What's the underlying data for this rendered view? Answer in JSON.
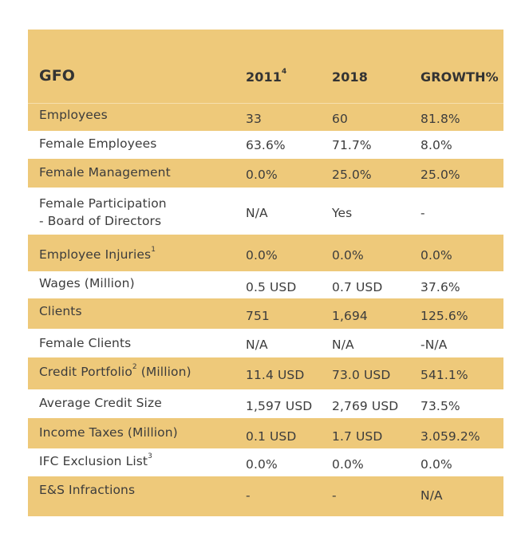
{
  "table": {
    "colors": {
      "shade": "#eec97a",
      "text": "#3c3c3c"
    },
    "header": {
      "title": "GFO",
      "col1": "2011",
      "col1_sup": "4",
      "col2": "2018",
      "col3": "GROWTH%"
    },
    "rows": [
      {
        "label": "Employees",
        "sup": "",
        "suffix": "",
        "v2011": "33",
        "v2018": "60",
        "growth": "81.8%"
      },
      {
        "label": "Female Employees",
        "sup": "",
        "suffix": "",
        "v2011": "63.6%",
        "v2018": "71.7%",
        "growth": "8.0%"
      },
      {
        "label": "Female Management",
        "sup": "",
        "suffix": "",
        "v2011": "0.0%",
        "v2018": "25.0%",
        "growth": "25.0%"
      },
      {
        "label": "Female Participation",
        "label2": "- Board of Directors",
        "sup": "",
        "suffix": "",
        "v2011": "N/A",
        "v2018": "Yes",
        "growth": "-"
      },
      {
        "label": "Employee Injuries",
        "sup": "1",
        "suffix": "",
        "v2011": "0.0%",
        "v2018": "0.0%",
        "growth": "0.0%"
      },
      {
        "label": "Wages (Million)",
        "sup": "",
        "suffix": "",
        "v2011": "0.5 USD",
        "v2018": "0.7 USD",
        "growth": "37.6%"
      },
      {
        "label": "Clients",
        "sup": "",
        "suffix": "",
        "v2011": "751",
        "v2018": "1,694",
        "growth": "125.6%"
      },
      {
        "label": "Female Clients",
        "sup": "",
        "suffix": "",
        "v2011": "N/A",
        "v2018": "N/A",
        "growth": "-N/A"
      },
      {
        "label": "Credit Portfolio",
        "sup": "2",
        "suffix": " (Million)",
        "v2011": "11.4 USD",
        "v2018": "73.0 USD",
        "growth": "541.1%"
      },
      {
        "label": "Average Credit Size",
        "sup": "",
        "suffix": "",
        "v2011": "1,597 USD",
        "v2018": "2,769 USD",
        "growth": "73.5%"
      },
      {
        "label": "Income Taxes (Million)",
        "sup": "",
        "suffix": "",
        "v2011": "0.1 USD",
        "v2018": "1.7 USD",
        "growth": "3.059.2%"
      },
      {
        "label": "IFC Exclusion List",
        "sup": "3",
        "suffix": "",
        "v2011": "0.0%",
        "v2018": "0.0%",
        "growth": "0.0%"
      },
      {
        "label": "E&S Infractions",
        "sup": "",
        "suffix": "",
        "v2011": "-",
        "v2018": "-",
        "growth": "N/A"
      }
    ]
  }
}
